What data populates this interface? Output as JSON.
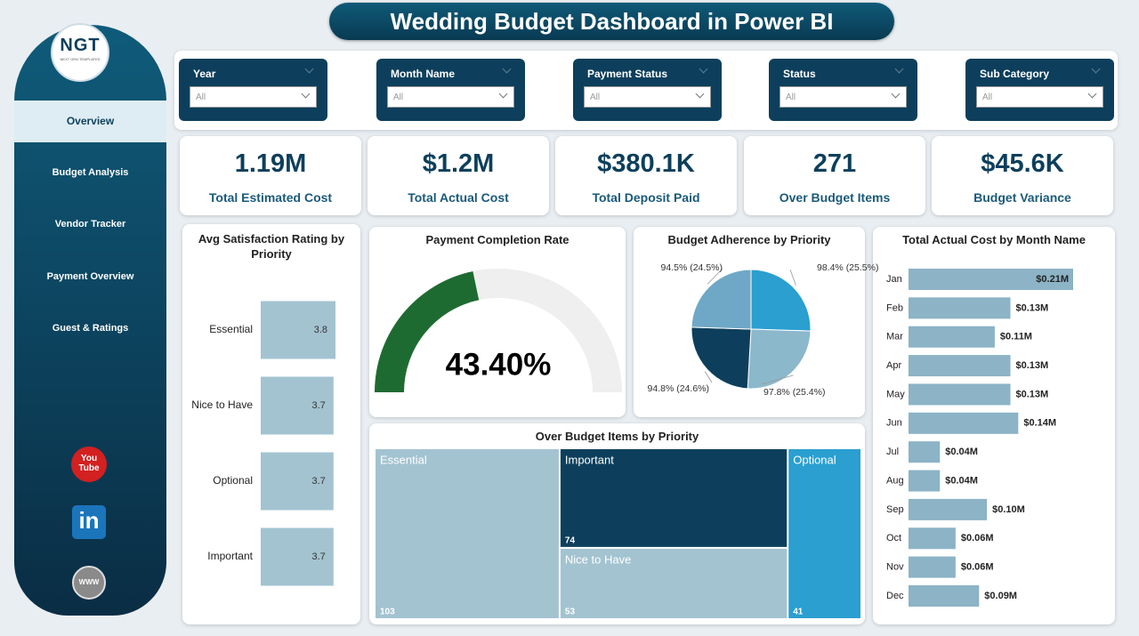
{
  "header": {
    "title": "Wedding Budget Dashboard in Power BI"
  },
  "logo": {
    "text": "NGT",
    "subtitle": "NEXT GEN TEMPLATES"
  },
  "nav": {
    "items": [
      "Overview",
      "Budget Analysis",
      "Vendor Tracker",
      "Payment Overview",
      "Guest & Ratings"
    ],
    "active": 0
  },
  "social": [
    "You Tube",
    "in",
    "WWW"
  ],
  "filters": [
    {
      "label": "Year",
      "value": "All"
    },
    {
      "label": "Month Name",
      "value": "All"
    },
    {
      "label": "Payment Status",
      "value": "All"
    },
    {
      "label": "Status",
      "value": "All"
    },
    {
      "label": "Sub Category",
      "value": "All"
    }
  ],
  "kpis": [
    {
      "value": "1.19M",
      "label": "Total Estimated Cost"
    },
    {
      "value": "$1.2M",
      "label": "Total Actual Cost"
    },
    {
      "value": "$380.1K",
      "label": "Total Deposit Paid"
    },
    {
      "value": "271",
      "label": "Over Budget Items"
    },
    {
      "value": "$45.6K",
      "label": "Budget Variance"
    }
  ],
  "chart_data": [
    {
      "type": "bar",
      "orientation": "horizontal",
      "title": "Avg Satisfaction Rating by Priority",
      "categories": [
        "Essential",
        "Nice to Have",
        "Optional",
        "Important"
      ],
      "values": [
        3.8,
        3.7,
        3.7,
        3.7
      ],
      "color": "#a3c3d1"
    },
    {
      "type": "gauge",
      "title": "Payment Completion Rate",
      "value": 43.4,
      "value_label": "43.40%",
      "ylim": [
        0,
        100
      ],
      "color": "#1e6b32",
      "track_color": "#efefef"
    },
    {
      "type": "pie",
      "title": "Budget Adherence by Priority",
      "values": [
        25.5,
        25.4,
        24.6,
        24.5
      ],
      "value_labels": [
        "98.4% (25.5%)",
        "97.8% (25.4%)",
        "94.8% (24.6%)",
        "94.5% (24.5%)"
      ],
      "colors": [
        "#2a9fd0",
        "#8cb8cc",
        "#0d3f5c",
        "#6fa8c6"
      ]
    },
    {
      "type": "treemap",
      "title": "Over Budget Items by Priority",
      "categories": [
        "Essential",
        "Important",
        "Nice to Have",
        "Optional"
      ],
      "values": [
        103,
        74,
        53,
        41
      ],
      "colors": [
        "#a3c3d1",
        "#0d3f5c",
        "#a3c3d1",
        "#2a9fd0"
      ]
    },
    {
      "type": "bar",
      "orientation": "horizontal",
      "title": "Total Actual Cost by Month Name",
      "categories": [
        "Jan",
        "Feb",
        "Mar",
        "Apr",
        "May",
        "Jun",
        "Jul",
        "Aug",
        "Sep",
        "Oct",
        "Nov",
        "Dec"
      ],
      "values": [
        0.21,
        0.13,
        0.11,
        0.13,
        0.13,
        0.14,
        0.04,
        0.04,
        0.1,
        0.06,
        0.06,
        0.09
      ],
      "value_labels": [
        "$0.21M",
        "$0.13M",
        "$0.11M",
        "$0.13M",
        "$0.13M",
        "$0.14M",
        "$0.04M",
        "$0.04M",
        "$0.10M",
        "$0.06M",
        "$0.06M",
        "$0.09M"
      ],
      "color": "#8cb3c6"
    }
  ]
}
